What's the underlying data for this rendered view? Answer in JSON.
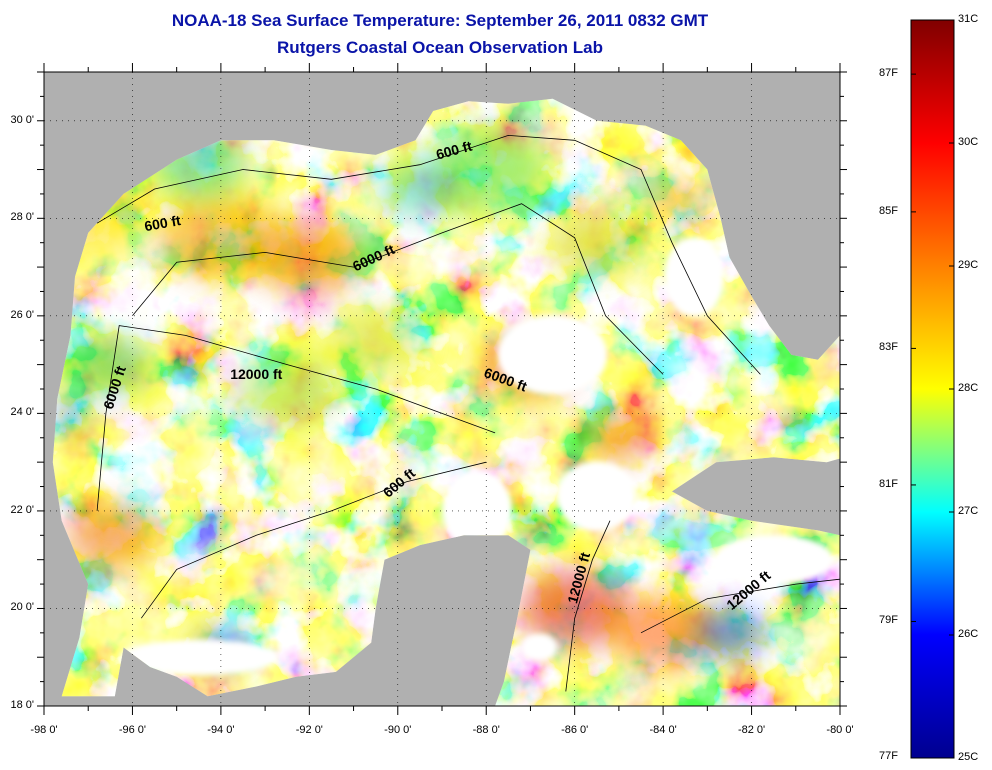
{
  "header": {
    "title_line1": "NOAA-18 Sea Surface Temperature:  September 26, 2011 0832 GMT",
    "title_line2": "Rutgers Coastal Ocean Observation Lab"
  },
  "map": {
    "lon_range": [
      -98,
      -80
    ],
    "lat_range": [
      18,
      31
    ],
    "lon_ticks": [
      "-98 0'",
      "-96 0'",
      "-94 0'",
      "-92 0'",
      "-90 0'",
      "-88 0'",
      "-86 0'",
      "-84 0'",
      "-82 0'",
      "-80 0'"
    ],
    "lat_ticks": [
      "18 0'",
      "20 0'",
      "22 0'",
      "24 0'",
      "26 0'",
      "28 0'",
      "30 0'"
    ],
    "contour_labels": [
      {
        "text": "600 ft",
        "lon": -95.3,
        "lat": 27.8,
        "rot": -10
      },
      {
        "text": "600 ft",
        "lon": -88.7,
        "lat": 29.3,
        "rot": -15
      },
      {
        "text": "6000 ft",
        "lon": -90.5,
        "lat": 27.1,
        "rot": -25
      },
      {
        "text": "12000 ft",
        "lon": -93.2,
        "lat": 24.7,
        "rot": 0
      },
      {
        "text": "6000 ft",
        "lon": -96.3,
        "lat": 24.5,
        "rot": -72
      },
      {
        "text": "6000 ft",
        "lon": -87.6,
        "lat": 24.6,
        "rot": 20
      },
      {
        "text": "600 ft",
        "lon": -89.9,
        "lat": 22.5,
        "rot": -40
      },
      {
        "text": "12000 ft",
        "lon": -85.8,
        "lat": 20.6,
        "rot": -75
      },
      {
        "text": "12000 ft",
        "lon": -82.0,
        "lat": 20.3,
        "rot": -40
      }
    ],
    "colors": {
      "land": "#b0b0b0",
      "cloud": "#ffffff",
      "title": "#0a14a8",
      "contour": "#000000"
    }
  },
  "colorbar": {
    "range_c": [
      25,
      31
    ],
    "celsius_labels": [
      "31C",
      "30C",
      "29C",
      "28C",
      "27C",
      "26C",
      "25C"
    ],
    "fahrenheit_labels": [
      {
        "text": "87F",
        "value_c": 30.56
      },
      {
        "text": "85F",
        "value_c": 29.44
      },
      {
        "text": "83F",
        "value_c": 28.33
      },
      {
        "text": "81F",
        "value_c": 27.22
      },
      {
        "text": "79F",
        "value_c": 26.11
      },
      {
        "text": "77F",
        "value_c": 25.0
      }
    ],
    "colormap": [
      "#00008f",
      "#0000ff",
      "#00ffff",
      "#ffff00",
      "#ff8000",
      "#ff0000",
      "#800000"
    ]
  }
}
